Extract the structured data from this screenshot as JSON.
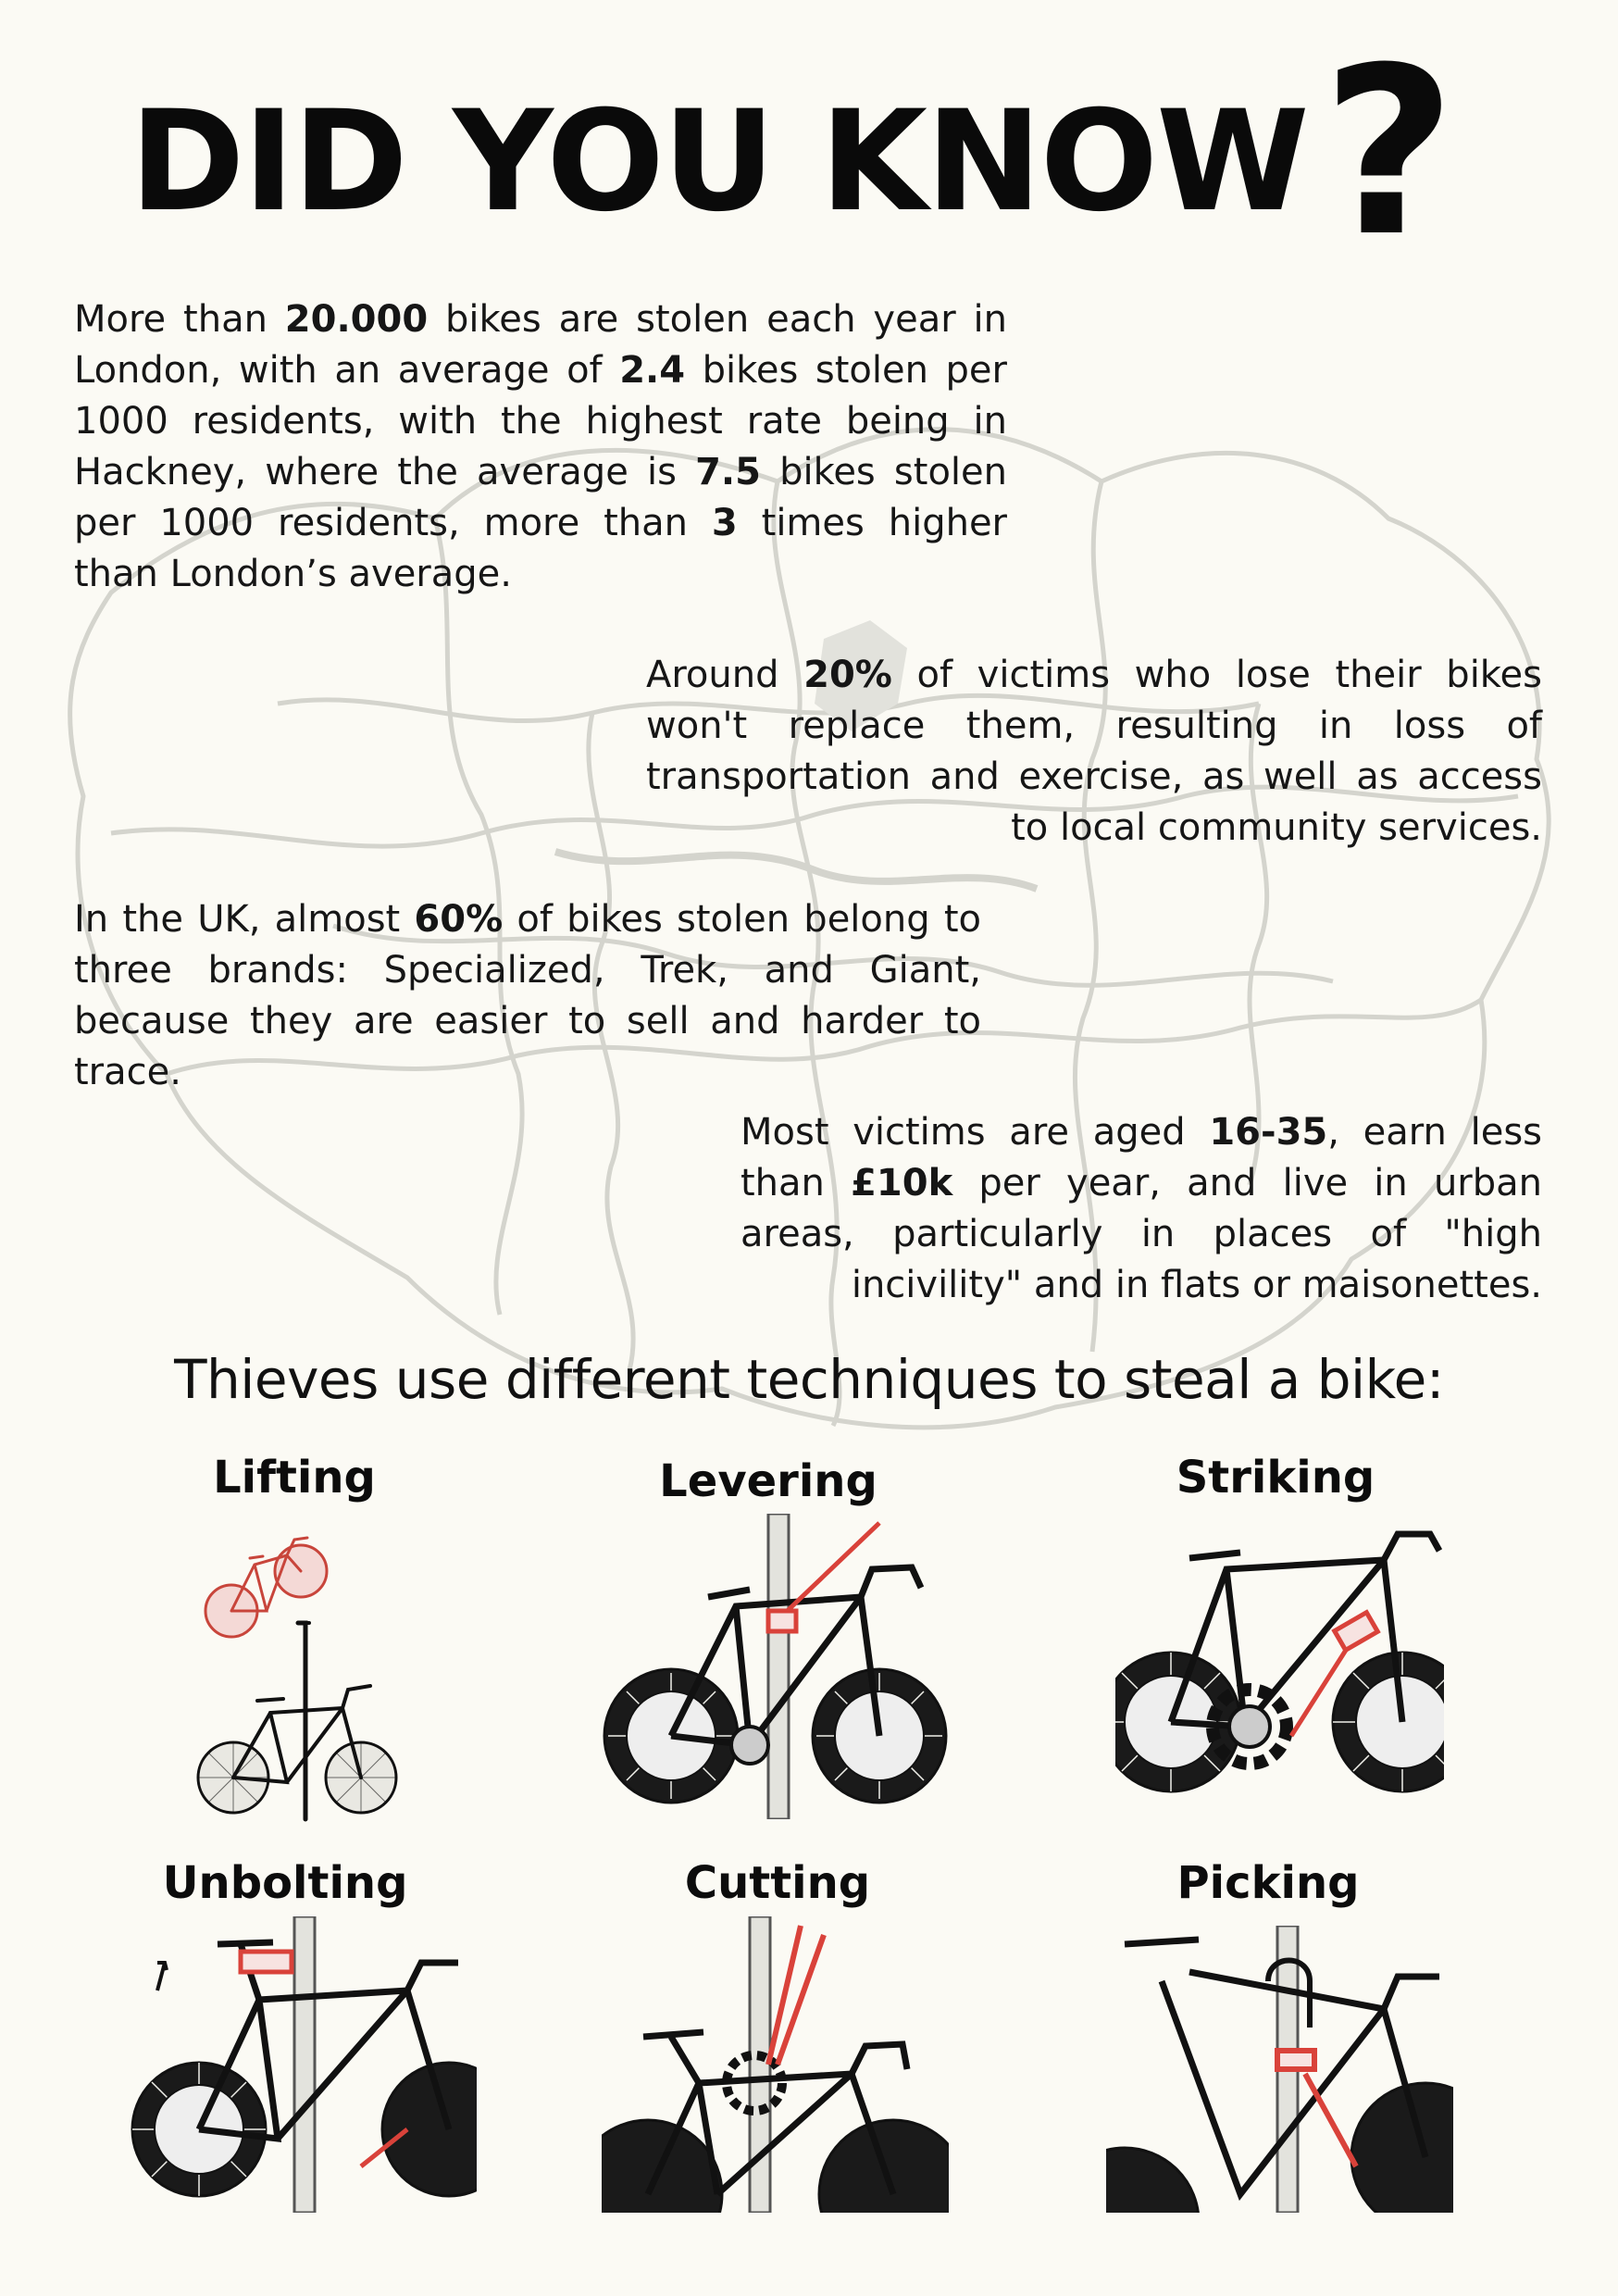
{
  "title": {
    "main": "DID YOU KNOW",
    "mark": "?"
  },
  "facts": [
    {
      "parts": [
        {
          "t": "More than ",
          "b": false
        },
        {
          "t": "20.000",
          "b": true
        },
        {
          "t": " bikes are stolen each year in London, with an average of ",
          "b": false
        },
        {
          "t": "2.4",
          "b": true
        },
        {
          "t": " bikes stolen per 1000 residents, with the highest rate being in Hackney, where the average is ",
          "b": false
        },
        {
          "t": "7.5",
          "b": true
        },
        {
          "t": " bikes stolen per 1000 residents, more than ",
          "b": false
        },
        {
          "t": "3",
          "b": true
        },
        {
          "t": " times higher than London’s average.",
          "b": false
        }
      ]
    },
    {
      "parts": [
        {
          "t": "Around ",
          "b": false
        },
        {
          "t": "20%",
          "b": true
        },
        {
          "t": " of victims who lose their bikes won't replace them, resulting in loss of transportation and exercise, as well as access to local community services.",
          "b": false
        }
      ]
    },
    {
      "parts": [
        {
          "t": "In the UK, almost ",
          "b": false
        },
        {
          "t": "60%",
          "b": true
        },
        {
          "t": " of bikes stolen belong to three brands: Specialized, Trek, and Giant, because they are easier to sell and harder to trace.",
          "b": false
        }
      ]
    },
    {
      "parts": [
        {
          "t": "Most victims are aged ",
          "b": false
        },
        {
          "t": "16-35",
          "b": true
        },
        {
          "t": ", earn less than ",
          "b": false
        },
        {
          "t": "£10k",
          "b": true
        },
        {
          "t": " per year, and live in urban areas, particularly in places of \"high incivility\" and in flats or maisonettes.",
          "b": false
        }
      ]
    }
  ],
  "subheading": "Thieves use different techniques to steal a bike:",
  "techniques": [
    {
      "label": "Lifting",
      "icon": "bike-lifting-illustration"
    },
    {
      "label": "Levering",
      "icon": "bike-levering-illustration"
    },
    {
      "label": "Striking",
      "icon": "bike-striking-illustration"
    },
    {
      "label": "Unbolting",
      "icon": "bike-unbolting-illustration"
    },
    {
      "label": "Cutting",
      "icon": "bike-cutting-illustration"
    },
    {
      "label": "Picking",
      "icon": "bike-picking-illustration"
    }
  ],
  "colors": {
    "accent": "#d9423a",
    "ink": "#111111",
    "map": "#d6d6d0",
    "background": "#fbfaf4"
  }
}
